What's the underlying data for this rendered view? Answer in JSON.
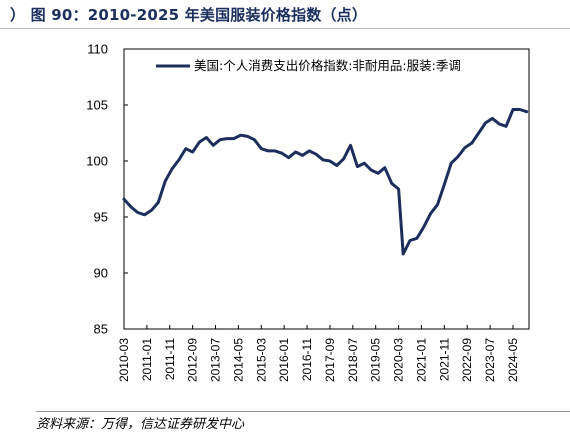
{
  "header": {
    "title": "） 图 90：2010-2025 年美国服装价格指数（点）"
  },
  "footer": {
    "source": "资料来源：万得，信达证券研发中心"
  },
  "chart_data": {
    "type": "line",
    "title": "",
    "xlabel": "",
    "ylabel": "",
    "ylim": [
      85,
      110
    ],
    "yticks": [
      85,
      90,
      95,
      100,
      105,
      110
    ],
    "xticks": [
      "2010-03",
      "2011-01",
      "2011-11",
      "2012-09",
      "2013-07",
      "2014-05",
      "2015-03",
      "2016-01",
      "2016-11",
      "2017-09",
      "2018-07",
      "2019-05",
      "2020-03",
      "2021-01",
      "2021-11",
      "2022-09",
      "2023-07",
      "2024-05"
    ],
    "legend_position": "top",
    "grid": false,
    "series": [
      {
        "name": "美国:个人消费支出价格指数:非耐用品:服装:季调",
        "color": "#1b2e5c",
        "x": [
          "2010-03",
          "2010-06",
          "2010-09",
          "2010-12",
          "2011-03",
          "2011-06",
          "2011-09",
          "2011-12",
          "2012-03",
          "2012-06",
          "2012-09",
          "2012-12",
          "2013-03",
          "2013-06",
          "2013-09",
          "2013-12",
          "2014-03",
          "2014-06",
          "2014-09",
          "2014-12",
          "2015-03",
          "2015-06",
          "2015-09",
          "2015-12",
          "2016-03",
          "2016-06",
          "2016-09",
          "2016-12",
          "2017-03",
          "2017-06",
          "2017-09",
          "2017-12",
          "2018-03",
          "2018-06",
          "2018-09",
          "2018-12",
          "2019-03",
          "2019-06",
          "2019-09",
          "2019-12",
          "2020-03",
          "2020-05",
          "2020-08",
          "2020-11",
          "2021-02",
          "2021-05",
          "2021-08",
          "2021-11",
          "2022-02",
          "2022-05",
          "2022-08",
          "2022-11",
          "2023-02",
          "2023-05",
          "2023-08",
          "2023-11",
          "2024-02",
          "2024-05",
          "2024-08",
          "2024-11"
        ],
        "values": [
          96.6,
          95.9,
          95.4,
          95.2,
          95.6,
          96.3,
          98.2,
          99.3,
          100.1,
          101.1,
          100.8,
          101.7,
          102.1,
          101.4,
          101.9,
          102.0,
          102.0,
          102.3,
          102.2,
          101.9,
          101.1,
          100.9,
          100.9,
          100.7,
          100.3,
          100.8,
          100.5,
          100.9,
          100.6,
          100.1,
          100.0,
          99.6,
          100.2,
          101.4,
          99.5,
          99.8,
          99.2,
          98.9,
          99.4,
          98.0,
          97.5,
          91.7,
          92.9,
          93.1,
          94.1,
          95.3,
          96.1,
          97.9,
          99.8,
          100.4,
          101.2,
          101.6,
          102.5,
          103.4,
          103.8,
          103.3,
          103.1,
          104.6,
          104.6,
          104.4
        ]
      }
    ]
  }
}
